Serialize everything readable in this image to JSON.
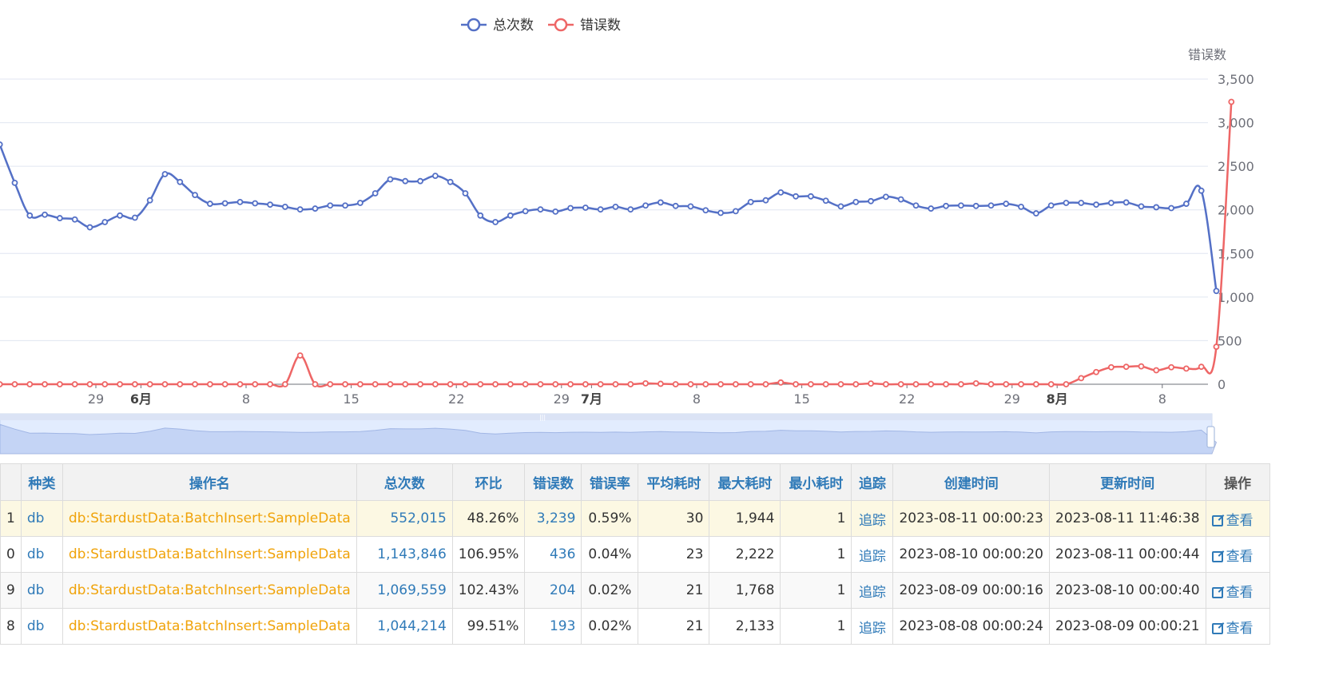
{
  "chart_data": {
    "type": "line",
    "legend": [
      {
        "name": "总次数",
        "color": "#5470c6"
      },
      {
        "name": "错误数",
        "color": "#ee6666"
      }
    ],
    "legend_position": "top-center",
    "y_axis_label": "错误数",
    "y_ticks": [
      "0",
      "500",
      "1,000",
      "1,500",
      "2,000",
      "2,500",
      "3,000",
      "3,500"
    ],
    "ylim": [
      0,
      3500
    ],
    "x_tick_labels": [
      {
        "label": "29",
        "bold": false,
        "day": 0
      },
      {
        "label": "6月",
        "bold": true,
        "day": 3
      },
      {
        "label": "8",
        "bold": false,
        "day": 10
      },
      {
        "label": "15",
        "bold": false,
        "day": 17
      },
      {
        "label": "22",
        "bold": false,
        "day": 24
      },
      {
        "label": "29",
        "bold": false,
        "day": 31
      },
      {
        "label": "7月",
        "bold": true,
        "day": 33
      },
      {
        "label": "8",
        "bold": false,
        "day": 40
      },
      {
        "label": "15",
        "bold": false,
        "day": 47
      },
      {
        "label": "22",
        "bold": false,
        "day": 54
      },
      {
        "label": "29",
        "bold": false,
        "day": 61
      },
      {
        "label": "8月",
        "bold": true,
        "day": 64
      },
      {
        "label": "8",
        "bold": false,
        "day": 71
      }
    ],
    "x_start_day": -6.4,
    "series": [
      {
        "name": "总次数",
        "color": "#5470c6",
        "values": [
          2750,
          2310,
          1935,
          1945,
          1905,
          1890,
          1800,
          1860,
          1935,
          1910,
          2110,
          2410,
          2320,
          2170,
          2070,
          2075,
          2090,
          2075,
          2060,
          2035,
          2005,
          2015,
          2050,
          2050,
          2080,
          2190,
          2350,
          2330,
          2330,
          2390,
          2320,
          2190,
          1935,
          1860,
          1935,
          1985,
          2005,
          1980,
          2020,
          2025,
          2005,
          2035,
          2005,
          2050,
          2085,
          2045,
          2040,
          1995,
          1965,
          1985,
          2090,
          2110,
          2200,
          2155,
          2155,
          2105,
          2040,
          2090,
          2100,
          2150,
          2120,
          2050,
          2015,
          2045,
          2050,
          2045,
          2050,
          2070,
          2035,
          1960,
          2050,
          2080,
          2080,
          2060,
          2080,
          2085,
          2040,
          2030,
          2020,
          2070,
          2220,
          1070
        ]
      },
      {
        "name": "错误数",
        "color": "#ee6666",
        "values": [
          0,
          0,
          0,
          0,
          0,
          0,
          0,
          0,
          0,
          0,
          0,
          0,
          0,
          0,
          0,
          0,
          0,
          0,
          0,
          0,
          330,
          0,
          0,
          0,
          0,
          0,
          0,
          0,
          0,
          0,
          0,
          0,
          0,
          0,
          0,
          0,
          0,
          0,
          0,
          0,
          0,
          0,
          0,
          10,
          5,
          0,
          0,
          0,
          0,
          0,
          0,
          0,
          20,
          0,
          0,
          0,
          0,
          0,
          8,
          0,
          0,
          0,
          0,
          0,
          0,
          10,
          0,
          0,
          0,
          0,
          0,
          0,
          70,
          140,
          195,
          200,
          205,
          160,
          195,
          180,
          200,
          430,
          3239
        ]
      }
    ]
  },
  "table": {
    "headers": [
      "",
      "种类",
      "操作名",
      "总次数",
      "环比",
      "错误数",
      "错误率",
      "平均耗时",
      "最大耗时",
      "最小耗时",
      "追踪",
      "创建时间",
      "更新时间",
      "操作"
    ],
    "rows": [
      {
        "id": "1",
        "kind": "db",
        "name": "db:StardustData:BatchInsert:SampleData",
        "total": "552,015",
        "ratio": "48.26%",
        "errors": "3,239",
        "err_rate": "0.59%",
        "avg": "30",
        "max": "1,944",
        "min": "1",
        "trace": "追踪",
        "created": "2023-08-11 00:00:23",
        "updated": "2023-08-11 11:46:38",
        "action": "查看"
      },
      {
        "id": "0",
        "kind": "db",
        "name": "db:StardustData:BatchInsert:SampleData",
        "total": "1,143,846",
        "ratio": "106.95%",
        "errors": "436",
        "err_rate": "0.04%",
        "avg": "23",
        "max": "2,222",
        "min": "1",
        "trace": "追踪",
        "created": "2023-08-10 00:00:20",
        "updated": "2023-08-11 00:00:44",
        "action": "查看"
      },
      {
        "id": "9",
        "kind": "db",
        "name": "db:StardustData:BatchInsert:SampleData",
        "total": "1,069,559",
        "ratio": "102.43%",
        "errors": "204",
        "err_rate": "0.02%",
        "avg": "21",
        "max": "1,768",
        "min": "1",
        "trace": "追踪",
        "created": "2023-08-09 00:00:16",
        "updated": "2023-08-10 00:00:40",
        "action": "查看"
      },
      {
        "id": "8",
        "kind": "db",
        "name": "db:StardustData:BatchInsert:SampleData",
        "total": "1,044,214",
        "ratio": "99.51%",
        "errors": "193",
        "err_rate": "0.02%",
        "avg": "21",
        "max": "2,133",
        "min": "1",
        "trace": "追踪",
        "created": "2023-08-08 00:00:24",
        "updated": "2023-08-09 00:00:21",
        "action": "查看"
      }
    ]
  }
}
